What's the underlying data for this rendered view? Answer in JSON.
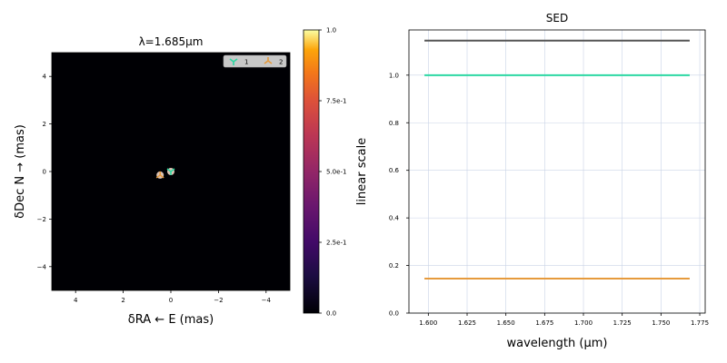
{
  "chart_data": [
    {
      "type": "image",
      "title_prefix": "λ=",
      "title_value": "1.685",
      "title_unit": "μm",
      "xlabel_prefix": "δRA ←",
      "xlabel_suffix": "E (mas)",
      "ylabel_prefix": "δDec N",
      "ylabel_suffix": "→ (mas)",
      "xlim": [
        5,
        -5
      ],
      "ylim": [
        -5,
        5
      ],
      "xticks": [
        4,
        2,
        0,
        -2,
        -4
      ],
      "yticks": [
        4,
        2,
        0,
        -2,
        -4
      ],
      "xtick_labels": [
        "4",
        "2",
        "0",
        "−2",
        "−4"
      ],
      "ytick_labels": [
        "4",
        "2",
        "0",
        "−2",
        "−4"
      ],
      "background": "#000004",
      "legend": {
        "position": "top-right",
        "entries": [
          {
            "label": "1",
            "marker": "tri_down",
            "color": "#2bd8a2"
          },
          {
            "label": "2",
            "marker": "tri_up",
            "color": "#e69a3c"
          }
        ]
      },
      "sources": [
        {
          "name": "1",
          "x": 0.0,
          "y": 0.0,
          "color": "#2bd8a2"
        },
        {
          "name": "2",
          "x": 0.45,
          "y": -0.15,
          "color": "#e69a3c"
        }
      ],
      "colorbar": {
        "label": "linear scale",
        "colormap": "inferno",
        "ticks": [
          0.0,
          0.25,
          0.5,
          0.75,
          1.0
        ],
        "tick_labels": [
          "0.0",
          "2.5e-1",
          "5.0e-1",
          "7.5e-1",
          "1.0"
        ]
      }
    },
    {
      "type": "line",
      "title": "SED",
      "xlabel": "wavelength (μm)",
      "ylabel": "",
      "xlim": [
        1.5875,
        1.7785
      ],
      "ylim": [
        0.0,
        1.19
      ],
      "xticks": [
        1.6,
        1.625,
        1.65,
        1.675,
        1.7,
        1.725,
        1.75,
        1.775
      ],
      "xtick_labels": [
        "1.600",
        "1.625",
        "1.650",
        "1.675",
        "1.700",
        "1.725",
        "1.750",
        "1.775"
      ],
      "yticks": [
        0.0,
        0.2,
        0.4,
        0.6,
        0.8,
        1.0
      ],
      "ytick_labels": [
        "0.0",
        "0.2",
        "0.4",
        "0.6",
        "0.8",
        "1.0"
      ],
      "grid": true,
      "series": [
        {
          "color": "#555555",
          "x": [
            1.5975,
            1.7685
          ],
          "values": [
            1.145,
            1.145
          ]
        },
        {
          "color": "#2bd8a2",
          "x": [
            1.5975,
            1.7685
          ],
          "values": [
            1.0,
            1.0
          ]
        },
        {
          "color": "#e69a3c",
          "x": [
            1.5975,
            1.7685
          ],
          "values": [
            0.145,
            0.145
          ]
        }
      ]
    }
  ]
}
